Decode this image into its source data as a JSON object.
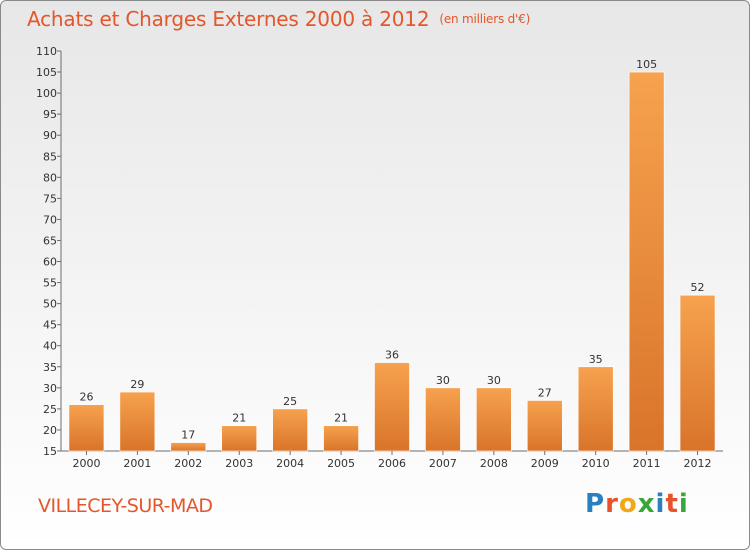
{
  "header": {
    "title": "Achats et Charges Externes 2000 à 2012",
    "unit": "(en milliers d'€)"
  },
  "footer": {
    "commune": "VILLECEY-SUR-MAD",
    "logo": "Proxiti"
  },
  "colors": {
    "title": "#e4562b",
    "bar_light": "#f6a24e",
    "bar_dark": "#d9742a",
    "axis": "#6e6e6e"
  },
  "chart_data": {
    "type": "bar",
    "title": "Achats et Charges Externes 2000 à 2012",
    "xlabel": "",
    "ylabel": "",
    "categories": [
      "2000",
      "2001",
      "2002",
      "2003",
      "2004",
      "2005",
      "2006",
      "2007",
      "2008",
      "2009",
      "2010",
      "2011",
      "2012"
    ],
    "values": [
      26,
      29,
      17,
      21,
      25,
      21,
      36,
      30,
      30,
      27,
      35,
      105,
      52
    ],
    "ylim": [
      15,
      110
    ],
    "yticks": [
      15,
      20,
      25,
      30,
      35,
      40,
      45,
      50,
      55,
      60,
      65,
      70,
      75,
      80,
      85,
      90,
      95,
      100,
      105,
      110
    ],
    "grid": false,
    "legend": "none"
  }
}
